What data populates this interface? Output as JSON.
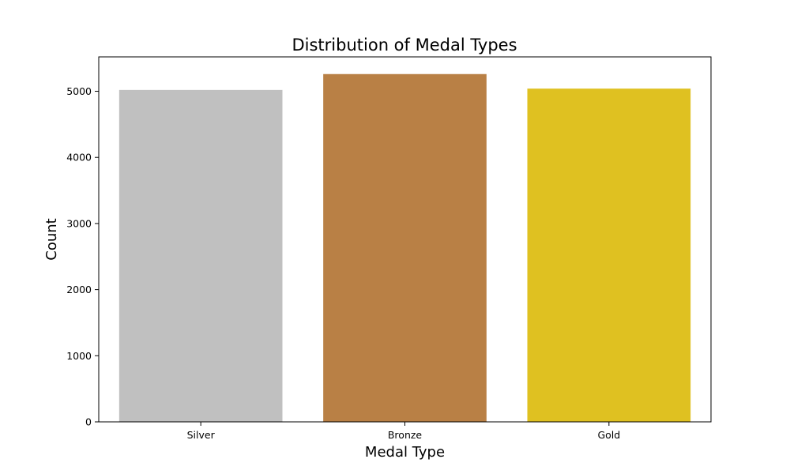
{
  "chart_data": {
    "type": "bar",
    "title": "Distribution of Medal Types",
    "xlabel": "Medal Type",
    "ylabel": "Count",
    "categories": [
      "Silver",
      "Bronze",
      "Gold"
    ],
    "values": [
      5020,
      5260,
      5040
    ],
    "colors": [
      "#c0c0c0",
      "#b98045",
      "#dfc121"
    ],
    "ylim": [
      0,
      5520
    ],
    "yticks": [
      0,
      1000,
      2000,
      3000,
      4000,
      5000
    ],
    "grid": false,
    "legend": "none"
  }
}
